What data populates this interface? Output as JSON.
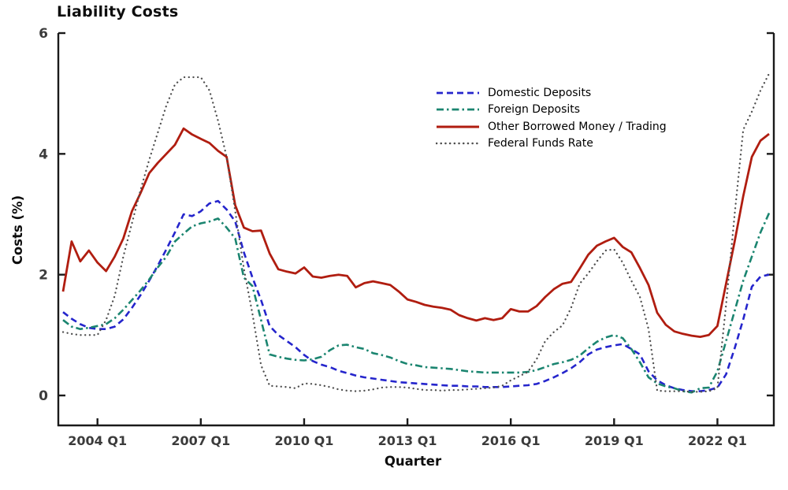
{
  "page": {
    "background": "#ffffff",
    "axis_color": "#1a1a1a",
    "tick_label_color": "#3b3b3b"
  },
  "chart_data": {
    "type": "line",
    "title": "Liability Costs",
    "xlabel": "Quarter",
    "ylabel": "Costs (%)",
    "ylim": [
      0,
      6
    ],
    "grid": false,
    "legend_position": "upper-center-right",
    "y_ticks": {
      "values": [
        0,
        2,
        4,
        6
      ],
      "labels": [
        "0",
        "2",
        "4",
        "6"
      ]
    },
    "x_ticks": [
      {
        "label": "2004 Q1",
        "index": 4
      },
      {
        "label": "2007 Q1",
        "index": 16
      },
      {
        "label": "2010 Q1",
        "index": 28
      },
      {
        "label": "2013 Q1",
        "index": 40
      },
      {
        "label": "2016 Q1",
        "index": 52
      },
      {
        "label": "2019 Q1",
        "index": 64
      },
      {
        "label": "2022 Q1",
        "index": 76
      }
    ],
    "x": [
      "2003 Q1",
      "2003 Q2",
      "2003 Q3",
      "2003 Q4",
      "2004 Q1",
      "2004 Q2",
      "2004 Q3",
      "2004 Q4",
      "2005 Q1",
      "2005 Q2",
      "2005 Q3",
      "2005 Q4",
      "2006 Q1",
      "2006 Q2",
      "2006 Q3",
      "2006 Q4",
      "2007 Q1",
      "2007 Q2",
      "2007 Q3",
      "2007 Q4",
      "2008 Q1",
      "2008 Q2",
      "2008 Q3",
      "2008 Q4",
      "2009 Q1",
      "2009 Q2",
      "2009 Q3",
      "2009 Q4",
      "2010 Q1",
      "2010 Q2",
      "2010 Q3",
      "2010 Q4",
      "2011 Q1",
      "2011 Q2",
      "2011 Q3",
      "2011 Q4",
      "2012 Q1",
      "2012 Q2",
      "2012 Q3",
      "2012 Q4",
      "2013 Q1",
      "2013 Q2",
      "2013 Q3",
      "2013 Q4",
      "2014 Q1",
      "2014 Q2",
      "2014 Q3",
      "2014 Q4",
      "2015 Q1",
      "2015 Q2",
      "2015 Q3",
      "2015 Q4",
      "2016 Q1",
      "2016 Q2",
      "2016 Q3",
      "2016 Q4",
      "2017 Q1",
      "2017 Q2",
      "2017 Q3",
      "2017 Q4",
      "2018 Q1",
      "2018 Q2",
      "2018 Q3",
      "2018 Q4",
      "2019 Q1",
      "2019 Q2",
      "2019 Q3",
      "2019 Q4",
      "2020 Q1",
      "2020 Q2",
      "2020 Q3",
      "2020 Q4",
      "2021 Q1",
      "2021 Q2",
      "2021 Q3",
      "2021 Q4",
      "2022 Q1",
      "2022 Q2",
      "2022 Q3",
      "2022 Q4",
      "2023 Q1",
      "2023 Q2",
      "2023 Q3"
    ],
    "series": [
      {
        "name": "Domestic Deposits",
        "color": "#2525cc",
        "style": "dashed",
        "values": [
          1.38,
          1.27,
          1.18,
          1.12,
          1.1,
          1.1,
          1.14,
          1.26,
          1.45,
          1.66,
          1.9,
          2.15,
          2.42,
          2.7,
          3.0,
          2.97,
          3.05,
          3.18,
          3.22,
          3.08,
          2.88,
          2.37,
          1.95,
          1.58,
          1.15,
          1.0,
          0.9,
          0.8,
          0.67,
          0.57,
          0.51,
          0.47,
          0.41,
          0.37,
          0.33,
          0.3,
          0.28,
          0.26,
          0.24,
          0.22,
          0.21,
          0.2,
          0.19,
          0.18,
          0.17,
          0.16,
          0.16,
          0.15,
          0.15,
          0.14,
          0.14,
          0.14,
          0.15,
          0.16,
          0.17,
          0.19,
          0.24,
          0.3,
          0.37,
          0.45,
          0.55,
          0.68,
          0.76,
          0.8,
          0.83,
          0.85,
          0.77,
          0.68,
          0.4,
          0.25,
          0.17,
          0.12,
          0.09,
          0.07,
          0.07,
          0.09,
          0.13,
          0.35,
          0.78,
          1.26,
          1.8,
          1.97,
          2.0
        ]
      },
      {
        "name": "Foreign Deposits",
        "color": "#1b8570",
        "style": "dashdot",
        "values": [
          1.25,
          1.14,
          1.1,
          1.12,
          1.15,
          1.18,
          1.28,
          1.42,
          1.58,
          1.74,
          1.92,
          2.12,
          2.3,
          2.55,
          2.68,
          2.8,
          2.85,
          2.88,
          2.93,
          2.78,
          2.6,
          1.95,
          1.81,
          1.25,
          0.68,
          0.64,
          0.61,
          0.59,
          0.58,
          0.6,
          0.64,
          0.75,
          0.83,
          0.84,
          0.8,
          0.77,
          0.7,
          0.67,
          0.63,
          0.57,
          0.52,
          0.5,
          0.47,
          0.46,
          0.45,
          0.44,
          0.42,
          0.4,
          0.39,
          0.38,
          0.38,
          0.38,
          0.38,
          0.38,
          0.39,
          0.42,
          0.47,
          0.52,
          0.55,
          0.59,
          0.66,
          0.78,
          0.89,
          0.96,
          1.0,
          0.95,
          0.77,
          0.55,
          0.3,
          0.2,
          0.15,
          0.12,
          0.07,
          0.05,
          0.12,
          0.13,
          0.4,
          0.9,
          1.4,
          1.9,
          2.3,
          2.7,
          3.02
        ]
      },
      {
        "name": "Other Borrowed Money / Trading",
        "color": "#b01d10",
        "style": "solid",
        "values": [
          1.72,
          2.55,
          2.22,
          2.4,
          2.2,
          2.06,
          2.3,
          2.6,
          3.05,
          3.35,
          3.68,
          3.85,
          4.0,
          4.15,
          4.42,
          4.32,
          4.25,
          4.18,
          4.05,
          3.95,
          3.15,
          2.78,
          2.72,
          2.73,
          2.35,
          2.09,
          2.05,
          2.02,
          2.12,
          1.97,
          1.95,
          1.98,
          2.0,
          1.98,
          1.79,
          1.86,
          1.89,
          1.86,
          1.83,
          1.72,
          1.59,
          1.55,
          1.5,
          1.47,
          1.45,
          1.42,
          1.33,
          1.28,
          1.24,
          1.28,
          1.25,
          1.28,
          1.43,
          1.39,
          1.39,
          1.48,
          1.63,
          1.76,
          1.85,
          1.88,
          2.1,
          2.33,
          2.48,
          2.55,
          2.61,
          2.46,
          2.37,
          2.11,
          1.83,
          1.37,
          1.17,
          1.06,
          1.02,
          0.99,
          0.97,
          1.0,
          1.15,
          1.85,
          2.55,
          3.3,
          3.95,
          4.22,
          4.33
        ]
      },
      {
        "name": "Federal Funds Rate",
        "color": "#4f4f4f",
        "style": "dotted",
        "values": [
          1.05,
          1.02,
          1.0,
          1.0,
          1.0,
          1.25,
          1.65,
          2.3,
          2.85,
          3.4,
          3.9,
          4.35,
          4.8,
          5.15,
          5.27,
          5.27,
          5.27,
          5.05,
          4.55,
          3.95,
          3.05,
          2.1,
          1.35,
          0.5,
          0.16,
          0.15,
          0.14,
          0.12,
          0.2,
          0.19,
          0.17,
          0.14,
          0.1,
          0.08,
          0.07,
          0.08,
          0.1,
          0.13,
          0.14,
          0.14,
          0.13,
          0.11,
          0.09,
          0.09,
          0.08,
          0.09,
          0.09,
          0.1,
          0.11,
          0.12,
          0.13,
          0.16,
          0.25,
          0.32,
          0.39,
          0.6,
          0.9,
          1.05,
          1.16,
          1.45,
          1.85,
          2.02,
          2.22,
          2.4,
          2.42,
          2.2,
          1.9,
          1.63,
          1.1,
          0.08,
          0.07,
          0.07,
          0.07,
          0.06,
          0.06,
          0.07,
          0.12,
          1.5,
          3.0,
          4.4,
          4.7,
          5.05,
          5.33
        ]
      }
    ]
  }
}
